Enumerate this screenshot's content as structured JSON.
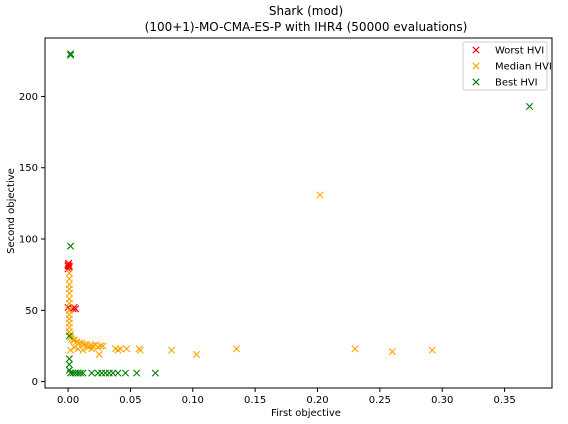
{
  "chart_data": {
    "type": "scatter",
    "title": "Shark (mod)",
    "subtitle": "(100+1)-MO-CMA-ES-P with IHR4 (50000 evaluations)",
    "xlabel": "First objective",
    "ylabel": "Second objective",
    "xlim": [
      -0.0185,
      0.388
    ],
    "ylim": [
      -4.5,
      241
    ],
    "xticks": [
      0.0,
      0.05,
      0.1,
      0.15,
      0.2,
      0.25,
      0.3,
      0.35
    ],
    "xtick_labels": [
      "0.00",
      "0.05",
      "0.10",
      "0.15",
      "0.20",
      "0.25",
      "0.30",
      "0.35"
    ],
    "yticks": [
      0,
      50,
      100,
      150,
      200
    ],
    "ytick_labels": [
      "0",
      "50",
      "100",
      "150",
      "200"
    ],
    "grid": false,
    "legend_position": "top-right",
    "marker": "x",
    "series": [
      {
        "name": "Worst HVI",
        "color": "#ff0000",
        "points": [
          [
            0.0,
            81
          ],
          [
            0.0,
            82
          ],
          [
            0.0005,
            83
          ],
          [
            0.001,
            80
          ],
          [
            0.0,
            79
          ],
          [
            0.001,
            81
          ],
          [
            0.004,
            51
          ],
          [
            0.005,
            52
          ],
          [
            0.006,
            51
          ],
          [
            0.0,
            52
          ]
        ]
      },
      {
        "name": "Median HVI",
        "color": "#ffa500",
        "points": [
          [
            0.001,
            76
          ],
          [
            0.001,
            72
          ],
          [
            0.001,
            68
          ],
          [
            0.001,
            65
          ],
          [
            0.001,
            62
          ],
          [
            0.001,
            58
          ],
          [
            0.001,
            55
          ],
          [
            0.001,
            50
          ],
          [
            0.001,
            47
          ],
          [
            0.001,
            44
          ],
          [
            0.001,
            41
          ],
          [
            0.001,
            38
          ],
          [
            0.001,
            35
          ],
          [
            0.002,
            33
          ],
          [
            0.002,
            31
          ],
          [
            0.003,
            30
          ],
          [
            0.004,
            29
          ],
          [
            0.005,
            29
          ],
          [
            0.007,
            28
          ],
          [
            0.009,
            27
          ],
          [
            0.011,
            27
          ],
          [
            0.013,
            26
          ],
          [
            0.015,
            26
          ],
          [
            0.018,
            25
          ],
          [
            0.02,
            25
          ],
          [
            0.022,
            26
          ],
          [
            0.024,
            24
          ],
          [
            0.026,
            25
          ],
          [
            0.028,
            25
          ],
          [
            0.025,
            19
          ],
          [
            0.038,
            23
          ],
          [
            0.04,
            22
          ],
          [
            0.042,
            23
          ],
          [
            0.047,
            23
          ],
          [
            0.057,
            23
          ],
          [
            0.058,
            22
          ],
          [
            0.083,
            22
          ],
          [
            0.103,
            19
          ],
          [
            0.135,
            23
          ],
          [
            0.202,
            131
          ],
          [
            0.23,
            23
          ],
          [
            0.26,
            21
          ],
          [
            0.292,
            22
          ],
          [
            0.002,
            22
          ],
          [
            0.005,
            24
          ],
          [
            0.008,
            23
          ],
          [
            0.012,
            22
          ],
          [
            0.016,
            24
          ],
          [
            0.019,
            23
          ]
        ]
      },
      {
        "name": "Best HVI",
        "color": "#008000",
        "points": [
          [
            0.002,
            229
          ],
          [
            0.002,
            230
          ],
          [
            0.002,
            95
          ],
          [
            0.001,
            32
          ],
          [
            0.001,
            16
          ],
          [
            0.001,
            12
          ],
          [
            0.001,
            8
          ],
          [
            0.002,
            6
          ],
          [
            0.004,
            6
          ],
          [
            0.006,
            6
          ],
          [
            0.008,
            6
          ],
          [
            0.01,
            6
          ],
          [
            0.012,
            6
          ],
          [
            0.019,
            6
          ],
          [
            0.024,
            6
          ],
          [
            0.027,
            6
          ],
          [
            0.03,
            6
          ],
          [
            0.033,
            6
          ],
          [
            0.036,
            6
          ],
          [
            0.04,
            6
          ],
          [
            0.046,
            6
          ],
          [
            0.055,
            6
          ],
          [
            0.07,
            6
          ],
          [
            0.37,
            193
          ]
        ]
      }
    ]
  }
}
